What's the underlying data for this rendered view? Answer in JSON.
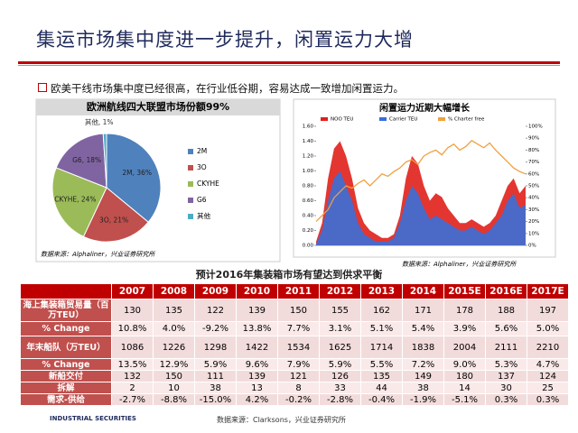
{
  "header": {
    "title": "集运市场集中度进一步提升，闲置运力大增"
  },
  "bullet": "欧美干线市场集中度已经很高，在行业低谷期，容易达成一致增加闲置运力。",
  "chart_data": [
    {
      "type": "pie",
      "title": "欧洲航线四大联盟市场份额99%",
      "categories": [
        "2M",
        "3O",
        "CKYHE",
        "G6",
        "其他"
      ],
      "values": [
        36,
        21,
        24,
        18,
        1
      ],
      "value_labels": [
        "2M, 36%",
        "3O, 21%",
        "CKYHE, 24%",
        "G6, 18%",
        "其他, 1%"
      ],
      "colors": [
        "#4f81bd",
        "#c0504d",
        "#9bbb59",
        "#8064a2",
        "#4bacc6"
      ],
      "legend": "right",
      "source": "数据来源：Alphaliner，兴业证券研究所"
    },
    {
      "type": "area",
      "title": "闲置运力近期大幅增长",
      "series": [
        {
          "name": "NOO TEU",
          "color": "#e0201b",
          "values": [
            0.05,
            0.3,
            0.9,
            1.3,
            1.4,
            1.2,
            0.9,
            0.5,
            0.3,
            0.2,
            0.15,
            0.1,
            0.1,
            0.15,
            0.4,
            0.9,
            1.2,
            1.1,
            0.8,
            0.6,
            0.7,
            0.65,
            0.5,
            0.4,
            0.3,
            0.3,
            0.35,
            0.3,
            0.25,
            0.3,
            0.4,
            0.6,
            0.8,
            0.9,
            0.7,
            0.8
          ]
        },
        {
          "name": "Carrier TEU",
          "color": "#3a6fd8",
          "values": [
            0.02,
            0.2,
            0.6,
            0.9,
            1.0,
            0.8,
            0.6,
            0.3,
            0.15,
            0.1,
            0.05,
            0.05,
            0.05,
            0.1,
            0.3,
            0.6,
            0.8,
            0.7,
            0.5,
            0.35,
            0.4,
            0.35,
            0.3,
            0.25,
            0.2,
            0.2,
            0.25,
            0.2,
            0.15,
            0.2,
            0.3,
            0.4,
            0.6,
            0.7,
            0.5,
            0.55
          ]
        },
        {
          "name": "% Charter free",
          "color": "#f0a040",
          "axis": "y2",
          "values": [
            20,
            25,
            30,
            40,
            45,
            50,
            48,
            52,
            55,
            50,
            55,
            60,
            58,
            62,
            65,
            70,
            72,
            68,
            75,
            78,
            80,
            76,
            82,
            85,
            80,
            83,
            88,
            85,
            82,
            86,
            80,
            75,
            70,
            65,
            62,
            60
          ]
        }
      ],
      "ylim": [
        0,
        1.6
      ],
      "yticks": [
        {
          "value": 0,
          "label": "0.00"
        },
        {
          "value": 0.2,
          "label": "0.20"
        },
        {
          "value": 0.4,
          "label": "0.40"
        },
        {
          "value": 0.6,
          "label": "0.60"
        },
        {
          "value": 0.8,
          "label": "0.80"
        },
        {
          "value": 1,
          "label": "1.00"
        },
        {
          "value": 1.2,
          "label": "1.20"
        },
        {
          "value": 1.4,
          "label": "1.40"
        },
        {
          "value": 1.6,
          "label": "1.60"
        }
      ],
      "y2lim": [
        0,
        100
      ],
      "y2ticks": [
        {
          "value": 0,
          "label": "0%"
        },
        {
          "value": 10,
          "label": "10%"
        },
        {
          "value": 20,
          "label": "20%"
        },
        {
          "value": 30,
          "label": "30%"
        },
        {
          "value": 40,
          "label": "40%"
        },
        {
          "value": 50,
          "label": "50%"
        },
        {
          "value": 60,
          "label": "60%"
        },
        {
          "value": 70,
          "label": "70%"
        },
        {
          "value": 80,
          "label": "80%"
        },
        {
          "value": 90,
          "label": "90%"
        },
        {
          "value": 100,
          "label": "100%"
        }
      ],
      "legend": "top",
      "source": "数据来源：Alphaliner，兴业证券研究所"
    }
  ],
  "table": {
    "title": "预计2016年集装箱市场有望达到供求平衡",
    "columns": [
      "2007",
      "2008",
      "2009",
      "2010",
      "2011",
      "2012",
      "2013",
      "2014",
      "2015E",
      "2016E",
      "2017E"
    ],
    "rows": [
      [
        "海上集装箱贸易量（百万TEU）",
        "130",
        "135",
        "122",
        "139",
        "150",
        "155",
        "162",
        "171",
        "178",
        "188",
        "197"
      ],
      [
        "% Change",
        "10.8%",
        "4.0%",
        "-9.2%",
        "13.8%",
        "7.7%",
        "3.1%",
        "5.1%",
        "5.4%",
        "3.9%",
        "5.6%",
        "5.0%"
      ],
      [
        "年末船队（万TEU）",
        "1086",
        "1226",
        "1298",
        "1422",
        "1534",
        "1625",
        "1714",
        "1838",
        "2004",
        "2111",
        "2210"
      ],
      [
        "% Change",
        "13.5%",
        "12.9%",
        "5.9%",
        "9.6%",
        "7.9%",
        "5.9%",
        "5.5%",
        "7.2%",
        "9.0%",
        "5.3%",
        "4.7%"
      ],
      [
        "新船交付",
        "132",
        "150",
        "111",
        "139",
        "121",
        "126",
        "135",
        "149",
        "180",
        "137",
        "124"
      ],
      [
        "拆解",
        "2",
        "10",
        "38",
        "13",
        "8",
        "33",
        "44",
        "38",
        "14",
        "30",
        "25"
      ],
      [
        "需求-供给",
        "-2.7%",
        "-8.8%",
        "-15.0%",
        "4.2%",
        "-0.2%",
        "-2.8%",
        "-0.4%",
        "-1.9%",
        "-5.1%",
        "0.3%",
        "0.3%"
      ]
    ],
    "source": "数据来源：Clarksons，兴业证券研究所"
  },
  "footer": {
    "logo": "INDUSTRIAL SECURITIES"
  }
}
